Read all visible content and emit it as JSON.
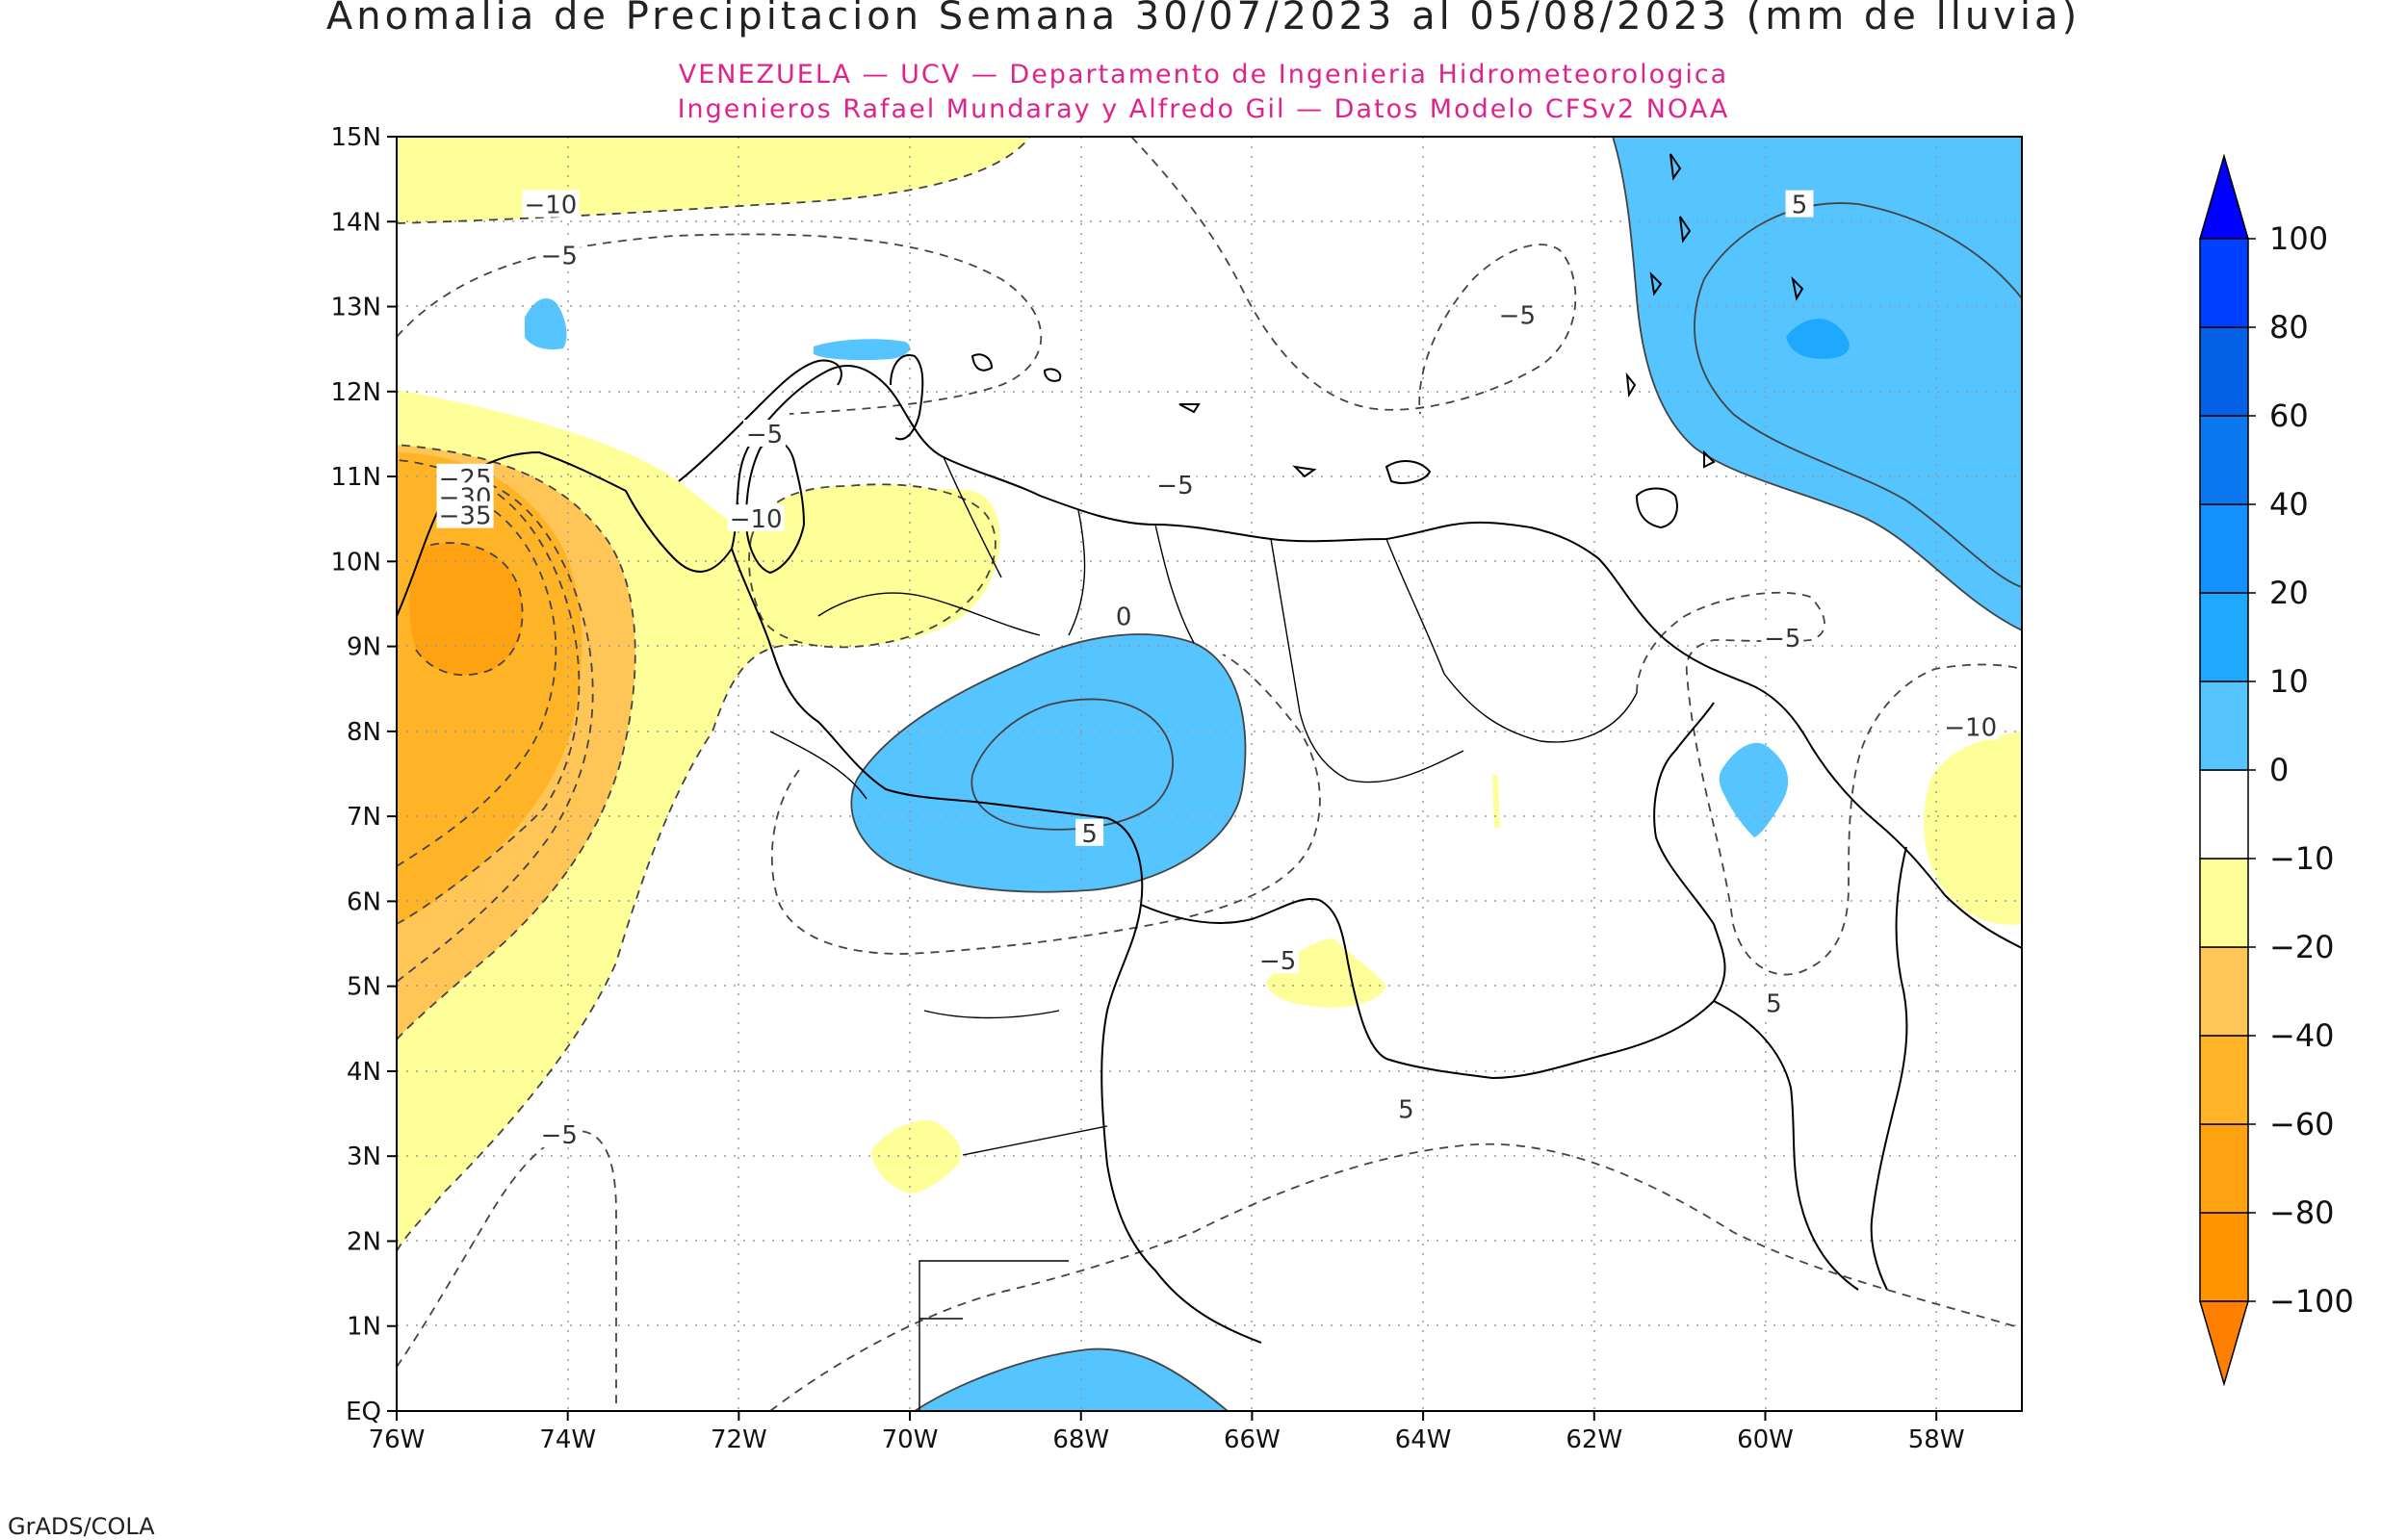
{
  "title": "Anomalia de Precipitacion Semana 30/07/2023 al 05/08/2023 (mm de lluvia)",
  "subtitle_1": "VENEZUELA — UCV — Departamento de Ingenieria Hidrometeorologica",
  "subtitle_2": "Ingenieros Rafael Mundaray y Alfredo Gil — Datos Modelo CFSv2 NOAA",
  "footer": "GrADS/COLA",
  "map": {
    "lon_range": [
      -76,
      -57
    ],
    "lat_range": [
      0,
      15
    ],
    "lat_ticks": [
      {
        "value": 15,
        "label": "15N"
      },
      {
        "value": 14,
        "label": "14N"
      },
      {
        "value": 13,
        "label": "13N"
      },
      {
        "value": 12,
        "label": "12N"
      },
      {
        "value": 11,
        "label": "11N"
      },
      {
        "value": 10,
        "label": "10N"
      },
      {
        "value": 9,
        "label": "9N"
      },
      {
        "value": 8,
        "label": "8N"
      },
      {
        "value": 7,
        "label": "7N"
      },
      {
        "value": 6,
        "label": "6N"
      },
      {
        "value": 5,
        "label": "5N"
      },
      {
        "value": 4,
        "label": "4N"
      },
      {
        "value": 3,
        "label": "3N"
      },
      {
        "value": 2,
        "label": "2N"
      },
      {
        "value": 1,
        "label": "1N"
      },
      {
        "value": 0,
        "label": "EQ"
      }
    ],
    "lon_ticks": [
      {
        "value": -76,
        "label": "76W"
      },
      {
        "value": -74,
        "label": "74W"
      },
      {
        "value": -72,
        "label": "72W"
      },
      {
        "value": -70,
        "label": "70W"
      },
      {
        "value": -68,
        "label": "68W"
      },
      {
        "value": -66,
        "label": "66W"
      },
      {
        "value": -64,
        "label": "64W"
      },
      {
        "value": -62,
        "label": "62W"
      },
      {
        "value": -60,
        "label": "60W"
      },
      {
        "value": -58,
        "label": "58W"
      }
    ],
    "grid": true,
    "contour_labels": [
      {
        "lon": -74.2,
        "lat": 14.2,
        "text": "−10"
      },
      {
        "lon": -74.1,
        "lat": 13.6,
        "text": "−5"
      },
      {
        "lon": -75.2,
        "lat": 10.98,
        "text": "−25"
      },
      {
        "lon": -75.2,
        "lat": 10.76,
        "text": "−30"
      },
      {
        "lon": -75.2,
        "lat": 10.54,
        "text": "−35"
      },
      {
        "lon": -71.8,
        "lat": 10.5,
        "text": "−10"
      },
      {
        "lon": -71.7,
        "lat": 11.5,
        "text": "−5"
      },
      {
        "lon": -66.9,
        "lat": 10.9,
        "text": "−5"
      },
      {
        "lon": -62.9,
        "lat": 12.9,
        "text": "−5"
      },
      {
        "lon": -67.5,
        "lat": 9.35,
        "text": "0"
      },
      {
        "lon": -67.9,
        "lat": 6.8,
        "text": "5"
      },
      {
        "lon": -65.7,
        "lat": 5.3,
        "text": "−5"
      },
      {
        "lon": -59.8,
        "lat": 9.1,
        "text": "−5"
      },
      {
        "lon": -59.6,
        "lat": 14.2,
        "text": "5"
      },
      {
        "lon": -57.6,
        "lat": 8.05,
        "text": "−10"
      },
      {
        "lon": -59.9,
        "lat": 4.8,
        "text": "5"
      },
      {
        "lon": -64.2,
        "lat": 3.55,
        "text": "5"
      },
      {
        "lon": -74.1,
        "lat": 3.25,
        "text": "−5"
      }
    ]
  },
  "colorbar": {
    "colors": [
      "#ff8000",
      "#ff9400",
      "#ffa211",
      "#ffb427",
      "#ffc657",
      "#ffff99",
      "#ffffff",
      "#55c4ff",
      "#1ea9ff",
      "#1490ff",
      "#0c78f0",
      "#0560e8",
      "#0040ff",
      "#0000ff"
    ],
    "tick_labels": [
      "−100",
      "−80",
      "−60",
      "−40",
      "−20",
      "−10",
      "0",
      "10",
      "20",
      "40",
      "60",
      "80",
      "100"
    ]
  },
  "colors": {
    "light_blue": "#55c4ff",
    "mid_blue": "#1ea9ff",
    "light_yellow": "#ffff99",
    "orange_light": "#ffc657",
    "orange_mid": "#ffb427",
    "orange_dark": "#ffa211",
    "subtitle": "#e0238c"
  }
}
